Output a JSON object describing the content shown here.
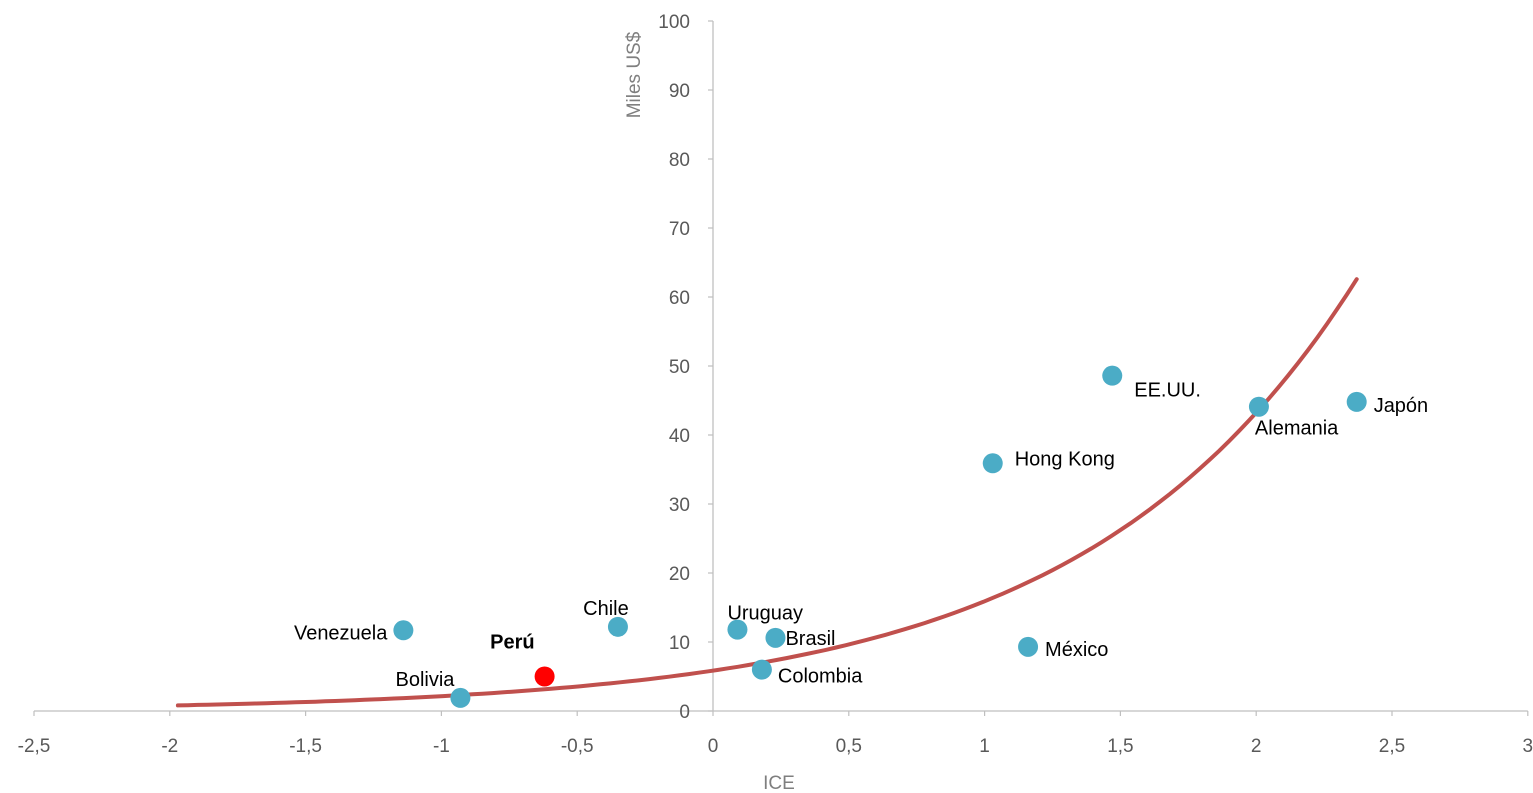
{
  "chart_data": {
    "type": "scatter",
    "title": "",
    "xlabel": "ICE",
    "ylabel": "Miles US$",
    "xlim": [
      -2.5,
      3
    ],
    "ylim": [
      0,
      100
    ],
    "x_ticks": [
      "-2,5",
      "-2",
      "-1,5",
      "-1",
      "-0,5",
      "0",
      "0,5",
      "1",
      "1,5",
      "2",
      "2,5",
      "3"
    ],
    "x_tick_values": [
      -2.5,
      -2,
      -1.5,
      -1,
      -0.5,
      0,
      0.5,
      1,
      1.5,
      2,
      2.5,
      3
    ],
    "y_ticks": [
      "0",
      "10",
      "20",
      "30",
      "40",
      "50",
      "60",
      "70",
      "80",
      "90",
      "100"
    ],
    "y_tick_values": [
      0,
      10,
      20,
      30,
      40,
      50,
      60,
      70,
      80,
      90,
      100
    ],
    "grid": false,
    "legend": "none",
    "colors": {
      "points": "#4bacc6",
      "highlight": "#ff0000",
      "trend": "#c0504d",
      "axis": "#bfbfbf"
    },
    "points": [
      {
        "label": "Venezuela",
        "x": -1.14,
        "y": 11.7,
        "highlight": false,
        "bold": false
      },
      {
        "label": "Bolivia",
        "x": -0.93,
        "y": 1.9,
        "highlight": false,
        "bold": false
      },
      {
        "label": "Perú",
        "x": -0.62,
        "y": 5.0,
        "highlight": true,
        "bold": true
      },
      {
        "label": "Chile",
        "x": -0.35,
        "y": 12.2,
        "highlight": false,
        "bold": false
      },
      {
        "label": "Uruguay",
        "x": 0.09,
        "y": 11.8,
        "highlight": false,
        "bold": false
      },
      {
        "label": "Brasil",
        "x": 0.23,
        "y": 10.6,
        "highlight": false,
        "bold": false
      },
      {
        "label": "Colombia",
        "x": 0.18,
        "y": 6.0,
        "highlight": false,
        "bold": false
      },
      {
        "label": "México",
        "x": 1.16,
        "y": 9.3,
        "highlight": false,
        "bold": false
      },
      {
        "label": "Hong Kong",
        "x": 1.03,
        "y": 35.9,
        "highlight": false,
        "bold": false
      },
      {
        "label": "EE.UU.",
        "x": 1.47,
        "y": 48.6,
        "highlight": false,
        "bold": false
      },
      {
        "label": "Alemania",
        "x": 2.01,
        "y": 44.1,
        "highlight": false,
        "bold": false
      },
      {
        "label": "Japón",
        "x": 2.37,
        "y": 44.8,
        "highlight": false,
        "bold": false
      }
    ],
    "trendline": {
      "type": "exponential",
      "a": 5.85,
      "b": 1.0,
      "x_range": [
        -1.97,
        2.37
      ]
    }
  }
}
